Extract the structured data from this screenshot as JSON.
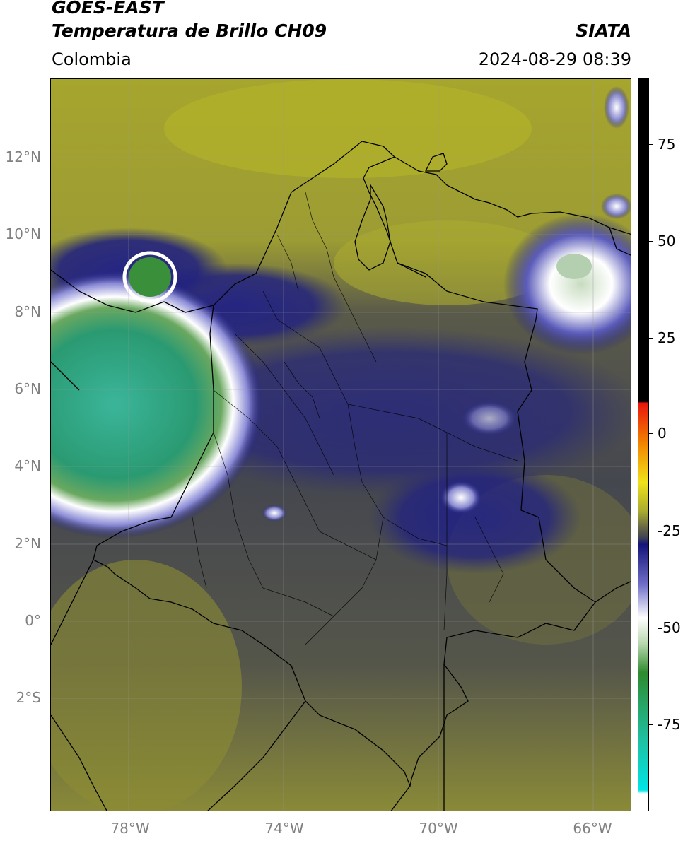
{
  "header": {
    "title_line1": "GOES-EAST",
    "title_line2": "Temperatura de Brillo CH09",
    "source": "SIATA",
    "region": "Colombia",
    "datetime": "2024-08-29 08:39"
  },
  "map": {
    "lat_labels": [
      "12°N",
      "10°N",
      "8°N",
      "6°N",
      "4°N",
      "2°N",
      "0°",
      "2°S"
    ],
    "lon_labels": [
      "78°W",
      "74°W",
      "70°W",
      "66°W"
    ]
  },
  "colorbar": {
    "ticks": [
      "75",
      "50",
      "25",
      "0",
      "-25",
      "-50",
      "-75"
    ],
    "colors": {
      "black": "#000000",
      "red": "#e8150c",
      "orange": "#f28a00",
      "yellow": "#f0e21a",
      "olive": "#a8ab2f",
      "gray": "#404552",
      "navy": "#14147a",
      "white": "#ffffff",
      "green": "#2e8b2e",
      "teal": "#1fbfa0",
      "cyan": "#00e5e5"
    }
  }
}
